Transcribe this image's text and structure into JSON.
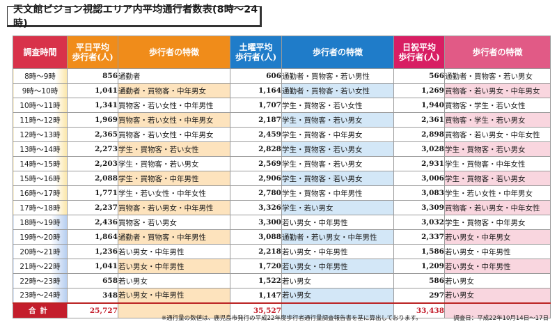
{
  "title": "天文館ビジョン視認エリア内平均通行者数表(8時～24時)",
  "headers": {
    "time": "調査時間",
    "weekday_avg_l1": "平日平均",
    "weekday_avg_l2": "歩行者(人)",
    "weekday_feat": "歩行者の特徴",
    "sat_avg_l1": "土曜平均",
    "sat_avg_l2": "歩行者(人)",
    "sat_feat": "歩行者の特徴",
    "hol_avg_l1": "日祝平均",
    "hol_avg_l2": "歩行者(人)",
    "hol_feat": "歩行者の特徴"
  },
  "rows": [
    {
      "time": "8時～9時",
      "wd": "856",
      "wd_f": "通勤者",
      "sat": "606",
      "sat_f": "通勤者・買物客・若い男性",
      "hol": "566",
      "hol_f": "通勤者・買物客・若い男女"
    },
    {
      "time": "9時～10時",
      "wd": "1,041",
      "wd_f": "通勤者・買物客・中年男女",
      "sat": "1,164",
      "sat_f": "通勤者・買物客・若い女性",
      "hol": "1,269",
      "hol_f": "買物客・若い男女・中年男女"
    },
    {
      "time": "10時～11時",
      "wd": "1,341",
      "wd_f": "買物客・若い女性・中年男性",
      "sat": "1,707",
      "sat_f": "学生・買物客・若い女性",
      "hol": "1,940",
      "hol_f": "買物客・学生・若い女性"
    },
    {
      "time": "11時～12時",
      "wd": "1,969",
      "wd_f": "買物客・若い女性・中年男女",
      "sat": "2,187",
      "sat_f": "学生・買物客・若い男女",
      "hol": "2,361",
      "hol_f": "買物客・学生・若い男女"
    },
    {
      "time": "12時～13時",
      "wd": "2,365",
      "wd_f": "買物客・若い女性・中年男女",
      "sat": "2,459",
      "sat_f": "学生・買物客・中年男女",
      "hol": "2,898",
      "hol_f": "買物客・若い男女・中年女性"
    },
    {
      "time": "13時～14時",
      "wd": "2,273",
      "wd_f": "学生・買物客・若い女性",
      "sat": "2,828",
      "sat_f": "学生・買物客・若い男女",
      "hol": "3,028",
      "hol_f": "学生・買物客・若い男女"
    },
    {
      "time": "14時～15時",
      "wd": "2,203",
      "wd_f": "学生・買物客・若い男女",
      "sat": "2,569",
      "sat_f": "学生・買物客・若い男女",
      "hol": "2,931",
      "hol_f": "学生・買物客・中年女性"
    },
    {
      "time": "15時～16時",
      "wd": "2,088",
      "wd_f": "学生・買物客・中年男性",
      "sat": "2,906",
      "sat_f": "学生・買物客・若い男女",
      "hol": "3,006",
      "hol_f": "学生・買物客・若い男女"
    },
    {
      "time": "16時～17時",
      "wd": "1,771",
      "wd_f": "学生・若い女性・中年女性",
      "sat": "2,780",
      "sat_f": "学生・買物客・中年男性",
      "hol": "3,083",
      "hol_f": "学生・若い女性・中年男女"
    },
    {
      "time": "17時～18時",
      "wd": "2,237",
      "wd_f": "買物客・若い男女・中年男性",
      "sat": "3,326",
      "sat_f": "学生・若い男女",
      "hol": "3,309",
      "hol_f": "買物客・若い男女・中年女性"
    },
    {
      "time": "18時～19時",
      "wd": "2,436",
      "wd_f": "買物客・若い男女",
      "sat": "3,300",
      "sat_f": "若い男女・中年男性",
      "hol": "3,032",
      "hol_f": "学生・買物客・中年男女"
    },
    {
      "time": "19時～20時",
      "wd": "1,864",
      "wd_f": "通勤者・買物客・中年男性",
      "sat": "3,088",
      "sat_f": "通勤者・若い男女・中年男性",
      "hol": "2,337",
      "hol_f": "若い男女・中年男女"
    },
    {
      "time": "20時～21時",
      "wd": "1,236",
      "wd_f": "若い男女・中年男性",
      "sat": "2,218",
      "sat_f": "若い男女・中年男性",
      "hol": "1,586",
      "hol_f": "若い男女・中年男性"
    },
    {
      "time": "21時～22時",
      "wd": "1,041",
      "wd_f": "若い男女・中年男性",
      "sat": "1,720",
      "sat_f": "若い男女・中年男性",
      "hol": "1,209",
      "hol_f": "若い男女・中年男性"
    },
    {
      "time": "22時～23時",
      "wd": "658",
      "wd_f": "若い男女",
      "sat": "1,522",
      "sat_f": "若い男女",
      "hol": "586",
      "hol_f": "若い男女"
    },
    {
      "time": "23時～24時",
      "wd": "348",
      "wd_f": "若い男女・中年男性",
      "sat": "1,147",
      "sat_f": "若い男女",
      "hol": "297",
      "hol_f": "若い男女"
    }
  ],
  "total": {
    "label": "合計",
    "wd": "25,727",
    "sat": "35,527",
    "hol": "33,438"
  },
  "footnote": "※通行量の数値は、鹿児島市発行の平成22年度歩行者通行量調査報告書を基に算出しております。",
  "survey_date": "調査日：平成22年10月14日～17日"
}
